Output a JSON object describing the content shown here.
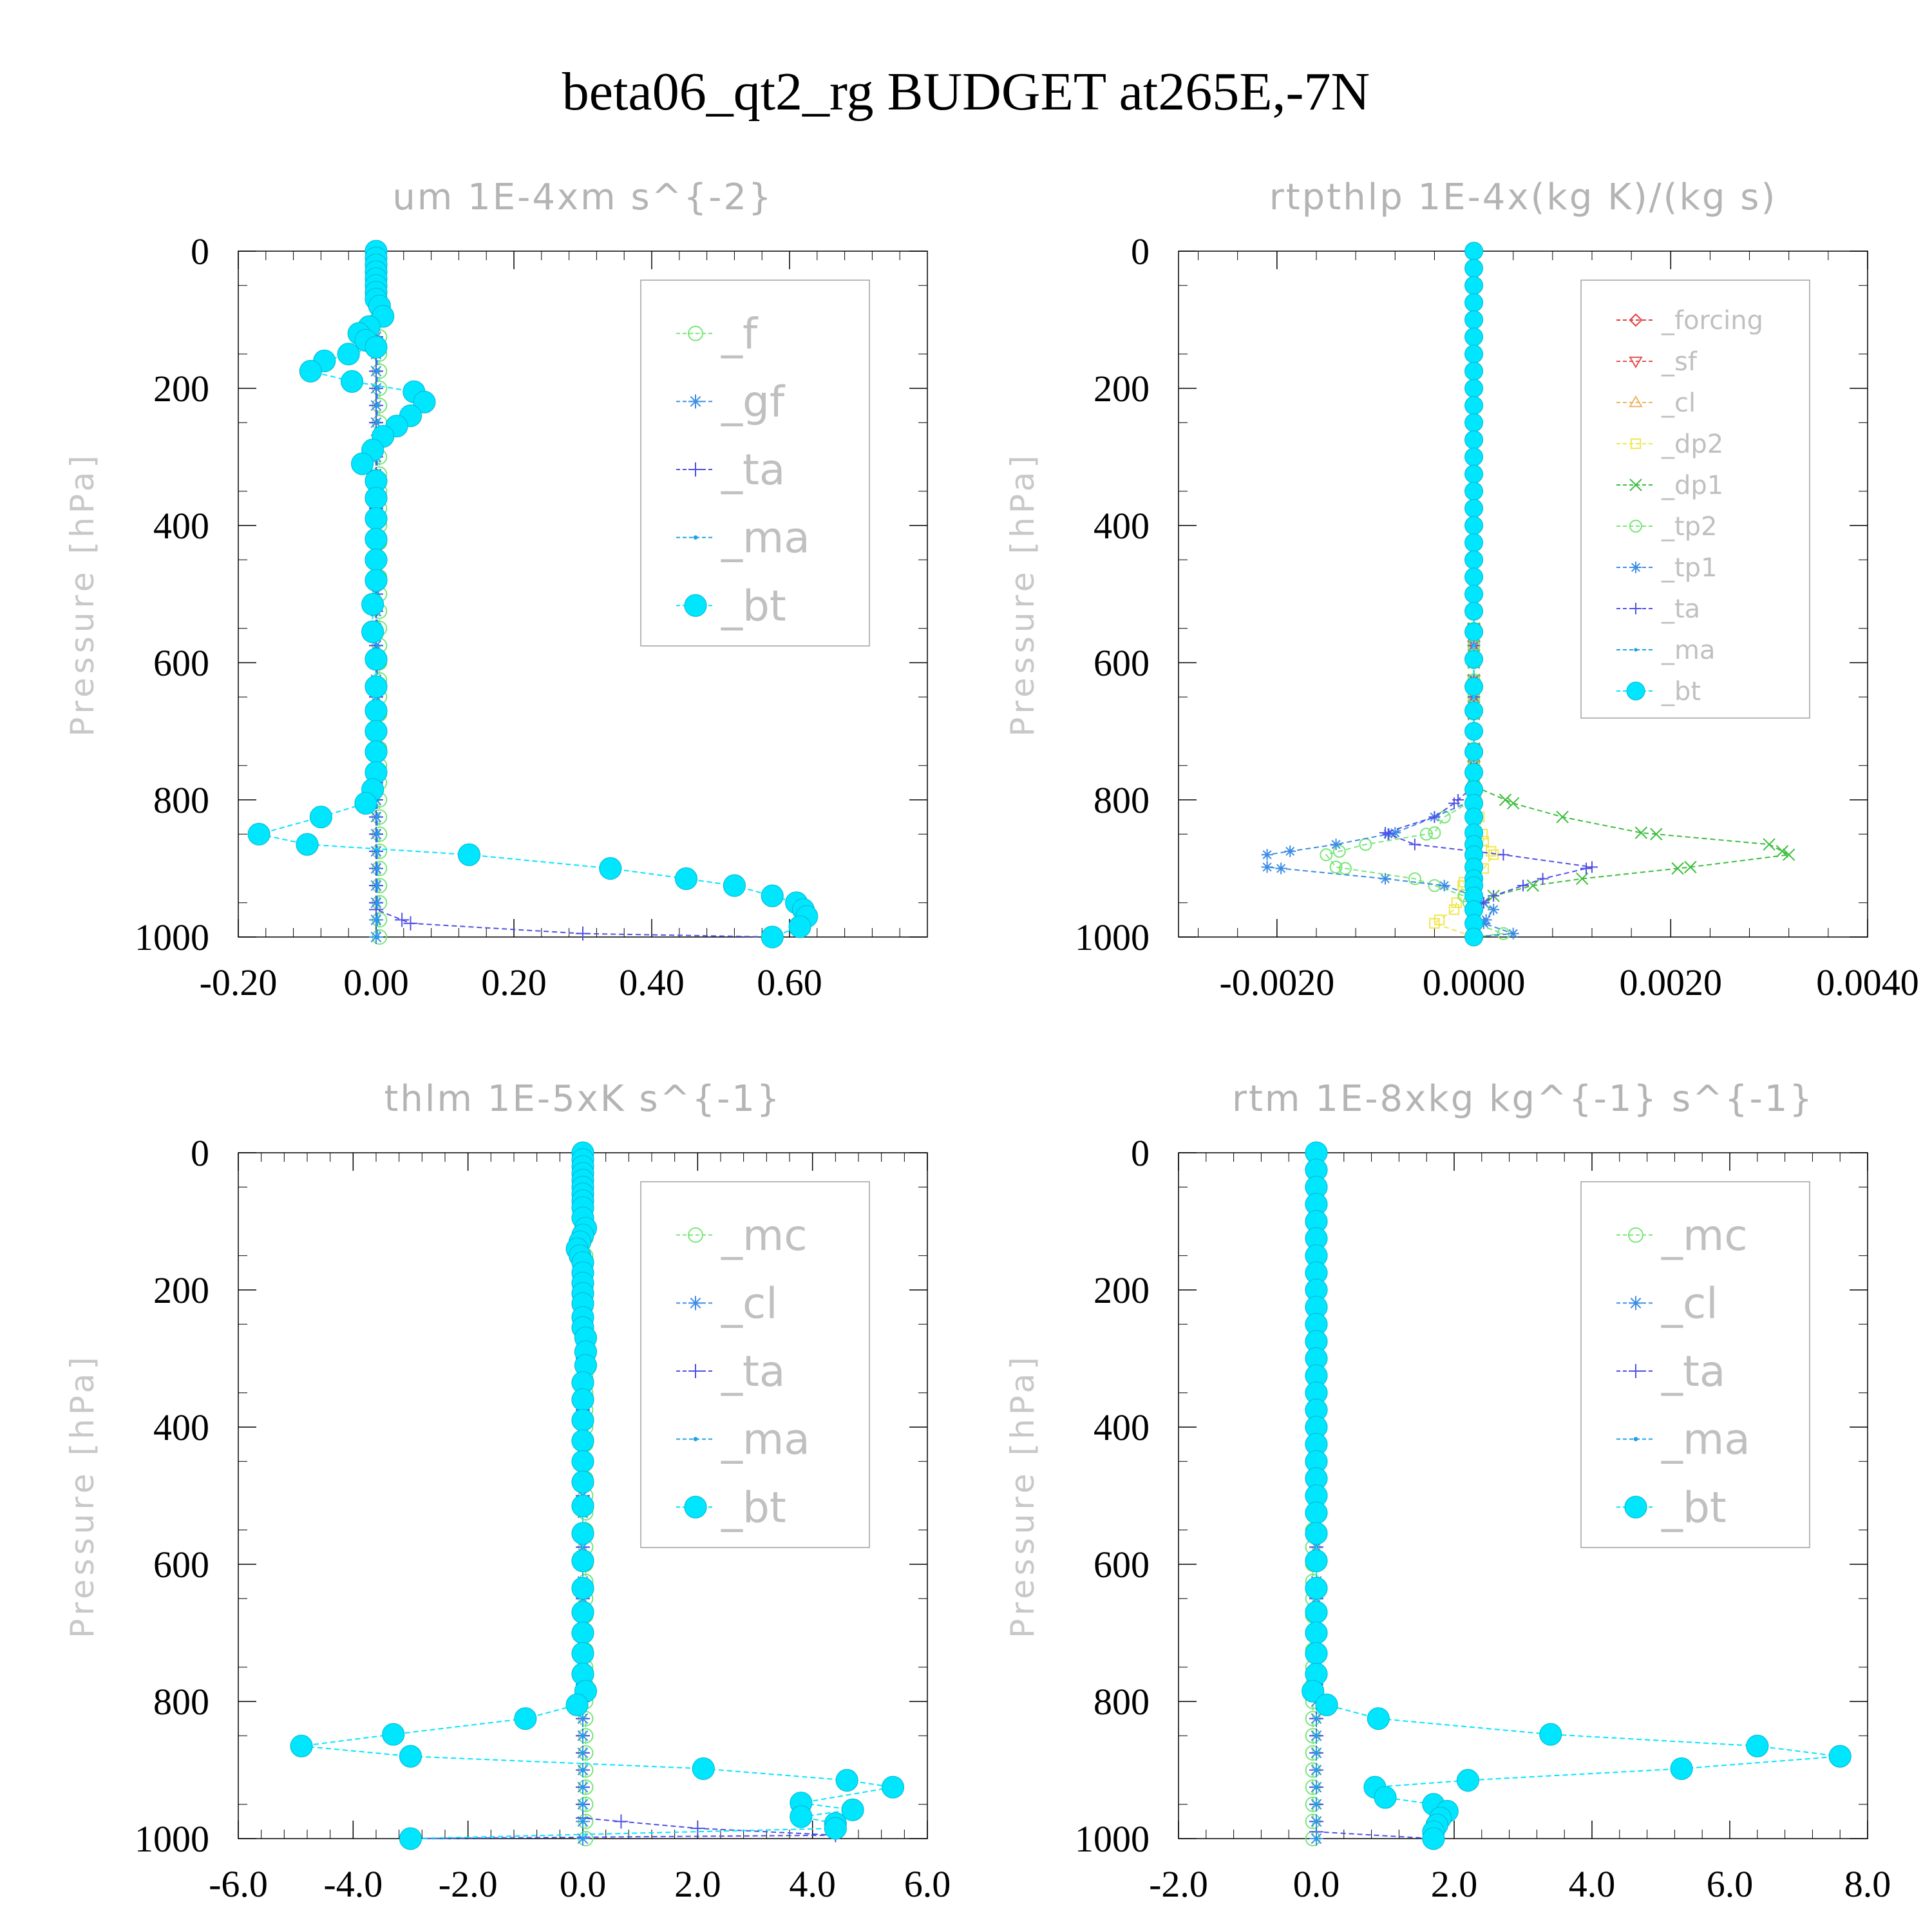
{
  "figure": {
    "title": "beta06_qt2_rg  BUDGET at265E,-7N"
  },
  "chart_data": [
    {
      "type": "line",
      "title": "um  1E-4xm s^{-2}",
      "ylabel": "Pressure [hPa]",
      "xlim": [
        -0.2,
        0.8
      ],
      "ylim": [
        1000,
        0
      ],
      "xticks": [
        -0.2,
        0.0,
        0.2,
        0.4,
        0.6
      ],
      "xtick_labels": [
        "-0.20",
        "0.00",
        "0.20",
        "0.40",
        "0.60"
      ],
      "yticks": [
        0,
        200,
        400,
        600,
        800,
        1000
      ],
      "ytick_labels": [
        "0",
        "200",
        "400",
        "600",
        "800",
        "1000"
      ],
      "legend_position": "top-right",
      "legend_font": 66,
      "series": [
        {
          "name": "_f",
          "color": "#78e678",
          "marker": "circle",
          "p": [
            0,
            500,
            1000
          ],
          "x": [
            0.005,
            0.005,
            0.005
          ]
        },
        {
          "name": "_gf",
          "color": "#3c8ce6",
          "marker": "asterisk",
          "p": [
            0,
            500,
            1000
          ],
          "x": [
            0.0,
            0.0,
            0.0
          ]
        },
        {
          "name": "_ta",
          "color": "#5050e6",
          "marker": "plus",
          "p": [
            0,
            960,
            980,
            995,
            1000
          ],
          "x": [
            0.0,
            0.0,
            0.05,
            0.3,
            0.58
          ]
        },
        {
          "name": "_ma",
          "color": "#1ea0e6",
          "marker": "dot",
          "p": [
            0,
            500,
            1000
          ],
          "x": [
            0.002,
            0.002,
            0.002
          ]
        },
        {
          "name": "_bt",
          "color": "#00e6ff",
          "marker": "bigcircle",
          "p": [
            0,
            10,
            20,
            30,
            40,
            50,
            60,
            70,
            80,
            95,
            110,
            120,
            130,
            140,
            150,
            160,
            175,
            190,
            205,
            220,
            240,
            255,
            270,
            290,
            310,
            335,
            360,
            390,
            420,
            450,
            480,
            515,
            555,
            595,
            635,
            670,
            700,
            730,
            760,
            785,
            805,
            825,
            850,
            865,
            880,
            900,
            915,
            925,
            940,
            950,
            960,
            970,
            985,
            1000
          ],
          "x": [
            0.0,
            0.0,
            0.0,
            0.0,
            0.0,
            0.0,
            0.0,
            0.0,
            0.005,
            0.01,
            -0.01,
            -0.025,
            -0.015,
            0.0,
            -0.04,
            -0.075,
            -0.095,
            -0.035,
            0.055,
            0.07,
            0.05,
            0.03,
            0.01,
            -0.005,
            -0.02,
            0.0,
            0.0,
            0.0,
            0.0,
            0.0,
            0.0,
            -0.005,
            -0.005,
            0.0,
            0.0,
            0.0,
            0.0,
            0.0,
            0.0,
            -0.005,
            -0.015,
            -0.08,
            -0.17,
            -0.1,
            0.135,
            0.34,
            0.45,
            0.52,
            0.575,
            0.61,
            0.62,
            0.625,
            0.615,
            0.575
          ]
        }
      ]
    },
    {
      "type": "line",
      "title": "rtpthlp  1E-4x(kg K)/(kg s)",
      "ylabel": "Pressure [hPa]",
      "xlim": [
        -0.003,
        0.004
      ],
      "ylim": [
        1000,
        0
      ],
      "xticks": [
        -0.002,
        0.0,
        0.002,
        0.004
      ],
      "xtick_labels": [
        "-0.0020",
        "0.0000",
        "0.0020",
        "0.0040"
      ],
      "yticks": [
        0,
        200,
        400,
        600,
        800,
        1000
      ],
      "ytick_labels": [
        "0",
        "200",
        "400",
        "600",
        "800",
        "1000"
      ],
      "legend_position": "top-right",
      "legend_font": 40,
      "series": [
        {
          "name": "_forcing",
          "color": "#e63c3c",
          "marker": "diamond",
          "p": [
            0,
            500,
            1000
          ],
          "x": [
            0.0,
            0.0,
            0.0
          ]
        },
        {
          "name": "_sf",
          "color": "#e65050",
          "marker": "triangle-down",
          "p": [
            0,
            500,
            1000
          ],
          "x": [
            0.0,
            0.0,
            0.0
          ]
        },
        {
          "name": "_cl",
          "color": "#f0b464",
          "marker": "triangle-up",
          "p": [
            0,
            500,
            1000
          ],
          "x": [
            0.0,
            0.0,
            0.0
          ]
        },
        {
          "name": "_dp2",
          "color": "#f0e650",
          "marker": "square",
          "p": [
            0,
            780,
            860,
            880,
            900,
            920,
            960,
            980,
            1000
          ],
          "x": [
            0.0,
            0.0,
            0.0001,
            0.0002,
            0.0001,
            -0.0001,
            -0.0002,
            -0.0004,
            0.0
          ]
        },
        {
          "name": "_dp1",
          "color": "#3cbe3c",
          "marker": "x",
          "p": [
            0,
            780,
            805,
            825,
            848,
            865,
            880,
            898,
            915,
            925,
            940,
            960,
            980,
            1000
          ],
          "x": [
            0.0,
            0.0,
            0.0004,
            0.0009,
            0.0017,
            0.003,
            0.0032,
            0.0022,
            0.0011,
            0.0006,
            0.0002,
            0.0,
            0.0,
            0.0
          ]
        },
        {
          "name": "_tp2",
          "color": "#78e678",
          "marker": "circle",
          "p": [
            0,
            800,
            825,
            848,
            865,
            880,
            898,
            915,
            925,
            940,
            960,
            980,
            995,
            1000
          ],
          "x": [
            0.0,
            0.0,
            -0.0003,
            -0.0004,
            -0.0011,
            -0.0015,
            -0.0014,
            -0.0006,
            -0.0004,
            -0.0001,
            0.0,
            0.0,
            0.0003,
            0.0
          ]
        },
        {
          "name": "_tp1",
          "color": "#3c8ce6",
          "marker": "asterisk",
          "p": [
            0,
            800,
            825,
            848,
            865,
            880,
            898,
            915,
            925,
            940,
            960,
            980,
            995,
            1000
          ],
          "x": [
            0.0,
            0.0,
            -0.0004,
            -0.0008,
            -0.0014,
            -0.0021,
            -0.0021,
            -0.0009,
            -0.0003,
            0.0,
            0.0002,
            0.0001,
            0.0004,
            0.0
          ]
        },
        {
          "name": "_ta",
          "color": "#5050e6",
          "marker": "plus",
          "p": [
            0,
            780,
            805,
            825,
            848,
            865,
            880,
            898,
            915,
            925,
            940,
            960,
            980,
            1000
          ],
          "x": [
            0.0,
            0.0,
            -0.0002,
            -0.0004,
            -0.0009,
            -0.0006,
            0.0003,
            0.0012,
            0.0007,
            0.0005,
            0.0002,
            0.0,
            0.0,
            0.0
          ]
        },
        {
          "name": "_ma",
          "color": "#1ea0e6",
          "marker": "dot",
          "p": [
            0,
            500,
            1000
          ],
          "x": [
            0.0,
            0.0,
            0.0
          ]
        },
        {
          "name": "_bt",
          "color": "#00e6ff",
          "marker": "bigcircle",
          "p": [
            0,
            25,
            50,
            75,
            100,
            125,
            150,
            175,
            200,
            225,
            250,
            275,
            300,
            325,
            350,
            375,
            400,
            425,
            450,
            475,
            500,
            525,
            555,
            595,
            635,
            670,
            700,
            730,
            760,
            785,
            805,
            825,
            848,
            865,
            880,
            898,
            915,
            925,
            940,
            960,
            980,
            1000
          ],
          "x": [
            0.0,
            0.0,
            0.0,
            0.0,
            0.0,
            0.0,
            0.0,
            0.0,
            0.0,
            0.0,
            0.0,
            0.0,
            0.0,
            0.0,
            0.0,
            0.0,
            0.0,
            0.0,
            0.0,
            0.0,
            0.0,
            0.0,
            0.0,
            0.0,
            0.0,
            0.0,
            0.0,
            0.0,
            0.0,
            0.0,
            0.0,
            0.0,
            0.0,
            0.0,
            0.0,
            0.0,
            0.0,
            0.0,
            0.0,
            0.0,
            0.0,
            0.0
          ]
        }
      ]
    },
    {
      "type": "line",
      "title": "thlm  1E-5xK s^{-1}",
      "ylabel": "Pressure [hPa]",
      "xlim": [
        -6.0,
        6.0
      ],
      "ylim": [
        1000,
        0
      ],
      "xticks": [
        -6.0,
        -4.0,
        -2.0,
        0.0,
        2.0,
        4.0,
        6.0
      ],
      "xtick_labels": [
        "-6.0",
        "-4.0",
        "-2.0",
        "0.0",
        "2.0",
        "4.0",
        "6.0"
      ],
      "yticks": [
        0,
        200,
        400,
        600,
        800,
        1000
      ],
      "ytick_labels": [
        "0",
        "200",
        "400",
        "600",
        "800",
        "1000"
      ],
      "legend_position": "top-right",
      "legend_font": 66,
      "series": [
        {
          "name": "_mc",
          "color": "#78e678",
          "marker": "circle",
          "p": [
            0,
            500,
            1000
          ],
          "x": [
            0.05,
            0.05,
            0.05
          ]
        },
        {
          "name": "_cl",
          "color": "#3c8ce6",
          "marker": "asterisk",
          "p": [
            0,
            500,
            1000
          ],
          "x": [
            0.0,
            0.0,
            0.0
          ]
        },
        {
          "name": "_ta",
          "color": "#5050e6",
          "marker": "plus",
          "p": [
            0,
            970,
            985,
            995,
            1000
          ],
          "x": [
            0.0,
            0.0,
            2.0,
            4.4,
            -3.0
          ]
        },
        {
          "name": "_ma",
          "color": "#1ea0e6",
          "marker": "dot",
          "p": [
            0,
            500,
            1000
          ],
          "x": [
            0.0,
            0.0,
            0.0
          ]
        },
        {
          "name": "_bt",
          "color": "#00e6ff",
          "marker": "bigcircle",
          "p": [
            0,
            10,
            20,
            30,
            40,
            50,
            60,
            70,
            80,
            95,
            110,
            120,
            130,
            140,
            150,
            160,
            175,
            190,
            205,
            220,
            240,
            255,
            270,
            290,
            310,
            335,
            360,
            390,
            420,
            450,
            480,
            515,
            555,
            595,
            635,
            670,
            700,
            730,
            760,
            785,
            805,
            825,
            848,
            865,
            880,
            898,
            915,
            925,
            948,
            958,
            968,
            978,
            985,
            1000
          ],
          "x": [
            0.0,
            0.0,
            0.0,
            0.0,
            0.0,
            0.0,
            0.0,
            0.0,
            0.0,
            0.0,
            0.05,
            0.0,
            -0.05,
            -0.1,
            -0.05,
            0.0,
            0.0,
            0.0,
            0.0,
            0.0,
            0.0,
            0.0,
            0.05,
            0.05,
            0.05,
            0.0,
            0.0,
            0.0,
            0.0,
            0.0,
            0.0,
            0.0,
            0.0,
            0.0,
            0.0,
            0.0,
            0.0,
            0.0,
            0.0,
            0.05,
            -0.1,
            -1.0,
            -3.3,
            -4.9,
            -3.0,
            2.1,
            4.6,
            5.4,
            3.8,
            4.7,
            3.8,
            4.4,
            4.4,
            -3.0
          ]
        }
      ]
    },
    {
      "type": "line",
      "title": "rtm  1E-8xkg kg^{-1} s^{-1}",
      "ylabel": "Pressure [hPa]",
      "xlim": [
        -2.0,
        8.0
      ],
      "ylim": [
        1000,
        0
      ],
      "xticks": [
        -2.0,
        0.0,
        2.0,
        4.0,
        6.0,
        8.0
      ],
      "xtick_labels": [
        "-2.0",
        "0.0",
        "2.0",
        "4.0",
        "6.0",
        "8.0"
      ],
      "yticks": [
        0,
        200,
        400,
        600,
        800,
        1000
      ],
      "ytick_labels": [
        "0",
        "200",
        "400",
        "600",
        "800",
        "1000"
      ],
      "legend_position": "top-right",
      "legend_font": 66,
      "series": [
        {
          "name": "_mc",
          "color": "#78e678",
          "marker": "circle",
          "p": [
            0,
            500,
            1000
          ],
          "x": [
            -0.05,
            -0.05,
            -0.05
          ]
        },
        {
          "name": "_cl",
          "color": "#3c8ce6",
          "marker": "asterisk",
          "p": [
            0,
            500,
            1000
          ],
          "x": [
            0.0,
            0.0,
            0.0
          ]
        },
        {
          "name": "_ta",
          "color": "#5050e6",
          "marker": "plus",
          "p": [
            0,
            990,
            1000
          ],
          "x": [
            0.0,
            0.0,
            1.7
          ]
        },
        {
          "name": "_ma",
          "color": "#1ea0e6",
          "marker": "dot",
          "p": [
            0,
            500,
            1000
          ],
          "x": [
            0.0,
            0.0,
            0.0
          ]
        },
        {
          "name": "_bt",
          "color": "#00e6ff",
          "marker": "bigcircle",
          "p": [
            0,
            25,
            50,
            75,
            100,
            125,
            150,
            175,
            200,
            225,
            250,
            275,
            300,
            325,
            350,
            375,
            400,
            425,
            450,
            475,
            500,
            525,
            555,
            595,
            635,
            670,
            700,
            730,
            760,
            785,
            805,
            825,
            848,
            865,
            880,
            898,
            915,
            925,
            940,
            950,
            960,
            970,
            980,
            990,
            1000
          ],
          "x": [
            0.0,
            0.0,
            0.0,
            0.0,
            0.0,
            0.0,
            0.0,
            0.0,
            0.0,
            0.0,
            0.0,
            0.0,
            0.0,
            0.0,
            0.0,
            0.0,
            0.0,
            0.0,
            0.0,
            0.0,
            0.0,
            0.0,
            0.0,
            0.0,
            0.0,
            0.0,
            0.0,
            0.0,
            0.0,
            -0.05,
            0.15,
            0.9,
            3.4,
            6.4,
            7.6,
            5.3,
            2.2,
            0.85,
            1.0,
            1.7,
            1.9,
            1.8,
            1.75,
            1.7,
            1.7
          ]
        }
      ]
    }
  ]
}
